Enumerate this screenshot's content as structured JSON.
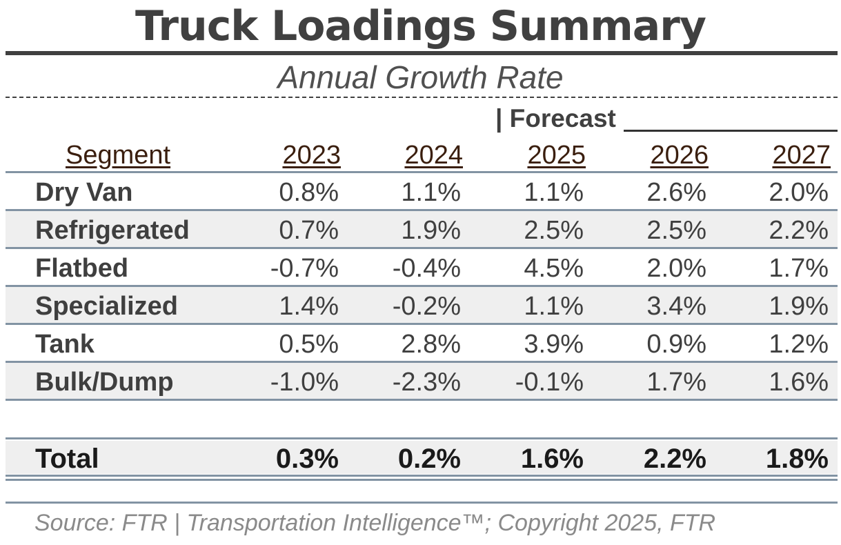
{
  "title": "Truck Loadings Summary",
  "subtitle": "Annual Growth Rate",
  "forecast_label": "| Forecast",
  "source": "Source: FTR | Transportation Intelligence™; Copyright 2025, FTR",
  "chart_data": {
    "type": "table",
    "title": "Truck Loadings Summary",
    "subtitle": "Annual Growth Rate",
    "segment_header": "Segment",
    "years": [
      "2023",
      "2024",
      "2025",
      "2026",
      "2027"
    ],
    "forecast_years": [
      "2025",
      "2026",
      "2027"
    ],
    "rows": [
      {
        "segment": "Dry Van",
        "values": [
          "0.8%",
          "1.1%",
          "1.1%",
          "2.6%",
          "2.0%"
        ]
      },
      {
        "segment": "Refrigerated",
        "values": [
          "0.7%",
          "1.9%",
          "2.5%",
          "2.5%",
          "2.2%"
        ]
      },
      {
        "segment": "Flatbed",
        "values": [
          "-0.7%",
          "-0.4%",
          "4.5%",
          "2.0%",
          "1.7%"
        ]
      },
      {
        "segment": "Specialized",
        "values": [
          "1.4%",
          "-0.2%",
          "1.1%",
          "3.4%",
          "1.9%"
        ]
      },
      {
        "segment": "Tank",
        "values": [
          "0.5%",
          "2.8%",
          "3.9%",
          "0.9%",
          "1.2%"
        ]
      },
      {
        "segment": "Bulk/Dump",
        "values": [
          "-1.0%",
          "-2.3%",
          "-0.1%",
          "1.7%",
          "1.6%"
        ]
      }
    ],
    "total": {
      "segment": "Total",
      "values": [
        "0.3%",
        "0.2%",
        "1.6%",
        "2.2%",
        "1.8%"
      ]
    }
  }
}
